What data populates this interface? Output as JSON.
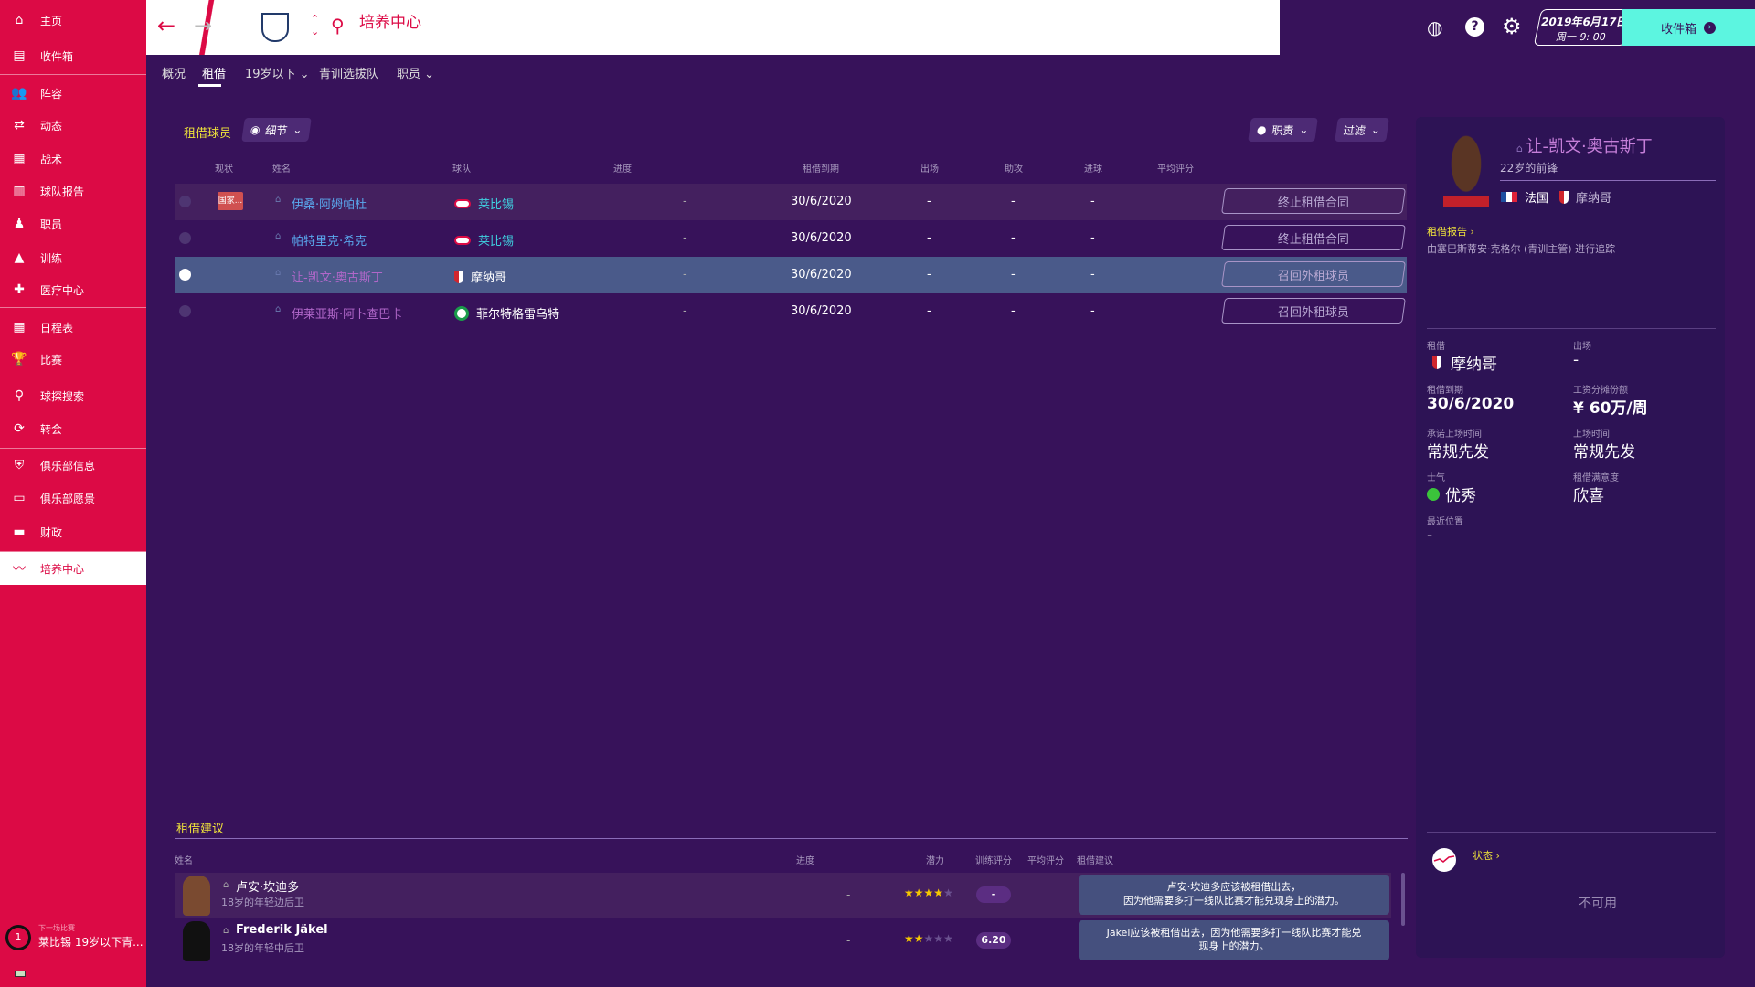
{
  "sidebar": {
    "items": [
      {
        "label": "主页",
        "icon": "home-icon"
      },
      {
        "label": "收件箱",
        "icon": "inbox-icon"
      },
      {
        "label": "阵容",
        "icon": "squad-icon"
      },
      {
        "label": "动态",
        "icon": "dynamics-icon"
      },
      {
        "label": "战术",
        "icon": "tactics-icon"
      },
      {
        "label": "球队报告",
        "icon": "report-icon"
      },
      {
        "label": "职员",
        "icon": "staff-icon"
      },
      {
        "label": "训练",
        "icon": "training-icon"
      },
      {
        "label": "医疗中心",
        "icon": "medical-icon"
      },
      {
        "label": "日程表",
        "icon": "calendar-icon"
      },
      {
        "label": "比赛",
        "icon": "trophy-icon"
      },
      {
        "label": "球探搜索",
        "icon": "search-icon"
      },
      {
        "label": "转会",
        "icon": "transfer-icon"
      },
      {
        "label": "俱乐部信息",
        "icon": "shield-icon"
      },
      {
        "label": "俱乐部愿景",
        "icon": "vision-icon"
      },
      {
        "label": "财政",
        "icon": "finance-icon"
      },
      {
        "label": "培养中心",
        "icon": "development-icon"
      }
    ],
    "next_match": {
      "label": "下一场比赛",
      "value": "莱比锡 19岁以下青...",
      "days": "1"
    }
  },
  "header": {
    "title": "培养中心",
    "date": "2019年6月17日",
    "time": "周一 9: 00",
    "inbox": "收件箱"
  },
  "tabs": [
    {
      "label": "概况"
    },
    {
      "label": "租借"
    },
    {
      "label": "19岁以下",
      "dropdown": true
    },
    {
      "label": "青训选拔队"
    },
    {
      "label": "职员",
      "dropdown": true
    }
  ],
  "loans": {
    "title": "租借球员",
    "view": "细节",
    "role_btn": "职责",
    "filter_btn": "过滤",
    "columns": [
      "现状",
      "姓名",
      "球队",
      "进度",
      "租借到期",
      "出场",
      "助攻",
      "进球",
      "平均评分"
    ],
    "rows": [
      {
        "status": "国家...",
        "name": "伊桑·阿姆帕杜",
        "team": "莱比锡",
        "progress": "-",
        "expiry": "30/6/2020",
        "apps": "-",
        "assists": "-",
        "goals": "-",
        "action": "终止租借合同"
      },
      {
        "status": "",
        "name": "帕特里克·希克",
        "team": "莱比锡",
        "progress": "-",
        "expiry": "30/6/2020",
        "apps": "-",
        "assists": "-",
        "goals": "-",
        "action": "终止租借合同"
      },
      {
        "status": "",
        "name": "让-凯文·奥古斯丁",
        "team": "摩纳哥",
        "progress": "-",
        "expiry": "30/6/2020",
        "apps": "-",
        "assists": "-",
        "goals": "-",
        "action": "召回外租球员",
        "selected": true
      },
      {
        "status": "",
        "name": "伊莱亚斯·阿卜查巴卡",
        "team": "菲尔特格雷乌特",
        "progress": "-",
        "expiry": "30/6/2020",
        "apps": "-",
        "assists": "-",
        "goals": "-",
        "action": "召回外租球员"
      }
    ]
  },
  "suggestions": {
    "title": "租借建议",
    "columns": [
      "姓名",
      "进度",
      "潜力",
      "训练评分",
      "平均评分",
      "租借建议"
    ],
    "rows": [
      {
        "name": "卢安·坎迪多",
        "desc": "18岁的年轻边后卫",
        "progress": "-",
        "potential_stars": 3.5,
        "training": "-",
        "advice": "卢安·坎迪多应该被租借出去，\n因为他需要多打一线队比赛才能兑现身上的潜力。"
      },
      {
        "name": "Frederik Jäkel",
        "desc": "18岁的年轻中后卫",
        "progress": "-",
        "potential_stars": 1.5,
        "training": "6.20",
        "advice": "Jäkel应该被租借出去，因为他需要多打一线队比赛才能兑\n现身上的潜力。"
      }
    ]
  },
  "panel": {
    "name": "让-凯文·奥古斯丁",
    "desc": "22岁的前锋",
    "nation": "法国",
    "club": "摩纳哥",
    "report_link": "租借报告",
    "report_text": "由塞巴斯蒂安·克格尔 (青训主管) 进行追踪",
    "fields": [
      {
        "label": "租借",
        "value": "摩纳哥"
      },
      {
        "label": "出场",
        "value": "-"
      },
      {
        "label": "租借到期",
        "value": "30/6/2020"
      },
      {
        "label": "工资分摊份额",
        "value": "¥ 60万/周"
      },
      {
        "label": "承诺上场时间",
        "value": "常规先发"
      },
      {
        "label": "上场时间",
        "value": "常规先发"
      },
      {
        "label": "士气",
        "value": "优秀"
      },
      {
        "label": "租借满意度",
        "value": "欣喜"
      },
      {
        "label": "最近位置",
        "value": "-"
      }
    ],
    "form_link": "状态",
    "form_value": "不可用"
  },
  "colors": {
    "accent": "#dc0a45",
    "bg": "#37125a",
    "highlight": "#4a5a8a",
    "inbox": "#5cf5e0",
    "yellow": "#f0e43a"
  }
}
